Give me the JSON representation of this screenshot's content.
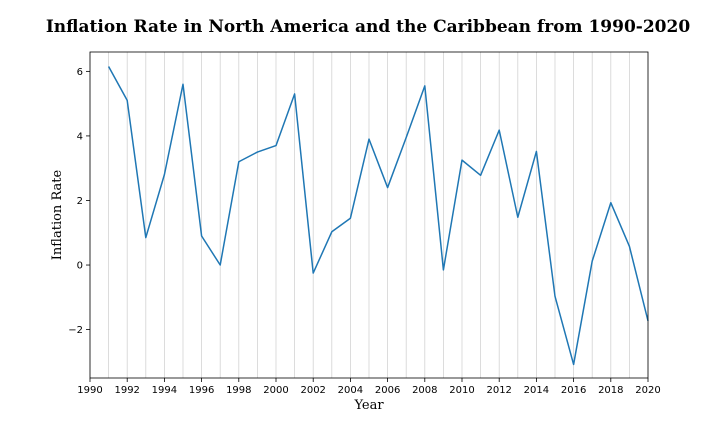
{
  "chart_data": {
    "type": "line",
    "title": "Inflation Rate in North America and the Caribbean from 1990-2020",
    "xlabel": "Year",
    "ylabel": "Inflation Rate",
    "xlim": [
      1990,
      2020
    ],
    "ylim": [
      -3.5,
      6.6
    ],
    "x_ticks": [
      1990,
      1992,
      1994,
      1996,
      1998,
      2000,
      2002,
      2004,
      2006,
      2008,
      2010,
      2012,
      2014,
      2016,
      2018,
      2020
    ],
    "x_tick_labels": [
      "1990",
      "1992",
      "1994",
      "1996",
      "1998",
      "2000",
      "2002",
      "2004",
      "2006",
      "2008",
      "2010",
      "2012",
      "2014",
      "2016",
      "2018",
      "2020"
    ],
    "y_ticks": [
      -2,
      0,
      2,
      4,
      6
    ],
    "y_tick_labels": [
      "−2",
      "0",
      "2",
      "4",
      "6"
    ],
    "grid": "vertical-yearly",
    "color": "#1f77b4",
    "x": [
      1991,
      1992,
      1993,
      1994,
      1995,
      1996,
      1997,
      1998,
      1999,
      2000,
      2001,
      2002,
      2003,
      2004,
      2005,
      2006,
      2007,
      2008,
      2009,
      2010,
      2011,
      2012,
      2013,
      2014,
      2015,
      2016,
      2017,
      2018,
      2019,
      2020
    ],
    "y": [
      6.15,
      5.1,
      0.85,
      2.8,
      5.6,
      0.9,
      0.0,
      3.2,
      3.5,
      3.7,
      5.3,
      -0.25,
      1.03,
      1.45,
      3.9,
      2.4,
      3.95,
      5.55,
      -0.15,
      3.25,
      2.78,
      4.18,
      1.48,
      3.52,
      -0.97,
      -3.08,
      0.12,
      1.93,
      0.58,
      -1.73
    ]
  }
}
